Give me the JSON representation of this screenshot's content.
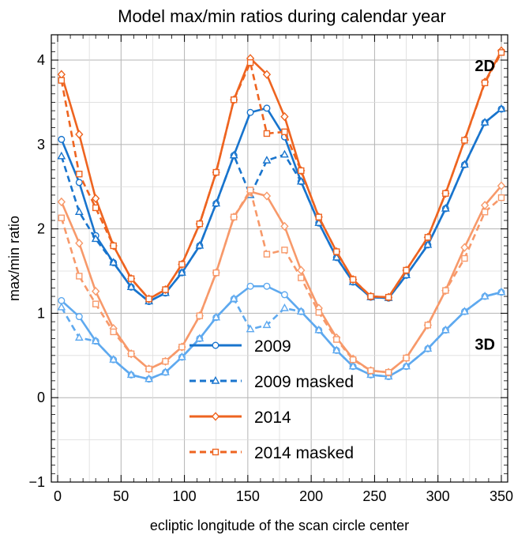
{
  "chart_data": {
    "type": "line",
    "title": "Model max/min ratios during calendar year",
    "xlabel": "ecliptic longitude of the scan circle center",
    "ylabel": "max/min ratio",
    "xlim": [
      -5,
      355
    ],
    "ylim": [
      -1,
      4.3
    ],
    "xticks": [
      0,
      50,
      100,
      150,
      200,
      250,
      300,
      350
    ],
    "yticks": [
      -1,
      0,
      1,
      2,
      3,
      4
    ],
    "grid": true,
    "annotations": [
      {
        "text": "2D",
        "x": 345,
        "y": 3.87
      },
      {
        "text": "3D",
        "x": 345,
        "y": 0.57
      }
    ],
    "legend": [
      {
        "label": "2009",
        "color": "#1874CD",
        "dash": false,
        "marker": "circle"
      },
      {
        "label": "2009 masked",
        "color": "#1874CD",
        "dash": true,
        "marker": "triangle"
      },
      {
        "label": "2014",
        "color": "#EE6420",
        "dash": false,
        "marker": "diamond"
      },
      {
        "label": "2014 masked",
        "color": "#EE6420",
        "dash": true,
        "marker": "square"
      }
    ],
    "x": [
      3,
      17,
      30,
      44,
      58,
      72,
      85,
      98,
      112,
      125,
      139,
      152,
      165,
      179,
      192,
      206,
      220,
      233,
      247,
      261,
      275,
      292,
      306,
      321,
      337,
      350
    ],
    "series": [
      {
        "group": "2009",
        "panel": "2D",
        "color": "#1874CD",
        "dash": false,
        "marker": "circle",
        "values": [
          3.06,
          2.55,
          1.92,
          1.6,
          1.31,
          1.14,
          1.24,
          1.48,
          1.8,
          2.3,
          2.87,
          3.38,
          3.43,
          3.09,
          2.56,
          2.07,
          1.66,
          1.37,
          1.19,
          1.18,
          1.45,
          1.81,
          2.24,
          2.76,
          3.26,
          3.42
        ]
      },
      {
        "group": "2009 masked",
        "panel": "2D",
        "color": "#1874CD",
        "dash": true,
        "marker": "triangle",
        "values": [
          2.86,
          2.2,
          1.88,
          1.6,
          1.31,
          1.14,
          1.24,
          1.48,
          1.8,
          2.3,
          2.87,
          2.4,
          2.81,
          2.88,
          2.56,
          2.07,
          1.66,
          1.37,
          1.19,
          1.18,
          1.45,
          1.81,
          2.24,
          2.76,
          3.26,
          3.42
        ]
      },
      {
        "group": "2014",
        "panel": "2D",
        "color": "#EE6420",
        "dash": false,
        "marker": "diamond",
        "values": [
          3.83,
          3.12,
          2.36,
          1.8,
          1.41,
          1.17,
          1.28,
          1.58,
          2.06,
          2.67,
          3.53,
          4.02,
          3.83,
          3.33,
          2.69,
          2.14,
          1.73,
          1.4,
          1.2,
          1.19,
          1.51,
          1.9,
          2.42,
          3.05,
          3.74,
          4.11
        ]
      },
      {
        "group": "2014 masked",
        "panel": "2D",
        "color": "#EE6420",
        "dash": true,
        "marker": "square",
        "values": [
          3.76,
          2.65,
          2.25,
          1.8,
          1.41,
          1.17,
          1.28,
          1.58,
          2.06,
          2.67,
          3.53,
          3.97,
          3.13,
          3.15,
          2.69,
          2.14,
          1.73,
          1.4,
          1.2,
          1.19,
          1.51,
          1.9,
          2.42,
          3.05,
          3.73,
          4.09
        ]
      },
      {
        "group": "2009",
        "panel": "3D",
        "color": "#5EA9EF",
        "dash": false,
        "marker": "circle",
        "values": [
          1.15,
          0.96,
          0.67,
          0.45,
          0.27,
          0.22,
          0.3,
          0.48,
          0.7,
          0.95,
          1.17,
          1.32,
          1.32,
          1.22,
          1.02,
          0.8,
          0.56,
          0.37,
          0.27,
          0.25,
          0.37,
          0.58,
          0.8,
          1.02,
          1.2,
          1.25
        ]
      },
      {
        "group": "2009 masked",
        "panel": "3D",
        "color": "#5EA9EF",
        "dash": true,
        "marker": "triangle",
        "values": [
          1.07,
          0.71,
          0.67,
          0.45,
          0.27,
          0.22,
          0.3,
          0.48,
          0.7,
          0.95,
          1.17,
          0.81,
          0.86,
          1.06,
          1.02,
          0.8,
          0.56,
          0.37,
          0.27,
          0.25,
          0.37,
          0.58,
          0.8,
          1.02,
          1.2,
          1.25
        ]
      },
      {
        "group": "2014",
        "panel": "3D",
        "color": "#F7996A",
        "dash": false,
        "marker": "diamond",
        "values": [
          2.32,
          1.83,
          1.26,
          0.82,
          0.52,
          0.34,
          0.43,
          0.6,
          0.97,
          1.48,
          2.14,
          2.44,
          2.39,
          2.03,
          1.51,
          1.06,
          0.71,
          0.46,
          0.32,
          0.3,
          0.47,
          0.86,
          1.27,
          1.78,
          2.28,
          2.51
        ]
      },
      {
        "group": "2014 masked",
        "panel": "3D",
        "color": "#F7996A",
        "dash": true,
        "marker": "square",
        "values": [
          2.13,
          1.44,
          1.11,
          0.78,
          0.52,
          0.34,
          0.43,
          0.6,
          0.97,
          1.48,
          2.14,
          2.46,
          1.7,
          1.75,
          1.42,
          1.01,
          0.69,
          0.45,
          0.32,
          0.3,
          0.47,
          0.86,
          1.27,
          1.65,
          2.2,
          2.37
        ]
      }
    ]
  }
}
